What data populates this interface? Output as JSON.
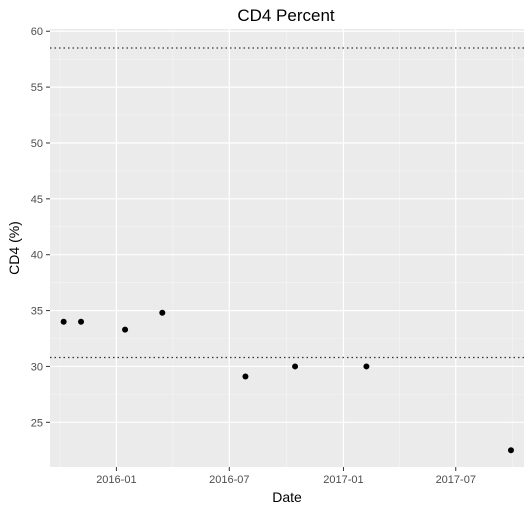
{
  "chart_data": {
    "type": "scatter",
    "title": "CD4 Percent",
    "xlabel": "Date",
    "ylabel": "CD4 (%)",
    "x_is_date": true,
    "xlim": [
      "2015-09-16",
      "2017-10-19"
    ],
    "ylim": [
      21,
      60.2
    ],
    "x_ticks": [
      {
        "value": "2016-01-01",
        "label": "2016-01"
      },
      {
        "value": "2016-07-01",
        "label": "2016-07"
      },
      {
        "value": "2017-01-01",
        "label": "2017-01"
      },
      {
        "value": "2017-07-01",
        "label": "2017-07"
      }
    ],
    "y_ticks": [
      25,
      30,
      35,
      40,
      45,
      50,
      55,
      60
    ],
    "reference_lines": [
      58.5,
      30.8
    ],
    "points": [
      {
        "x": "2015-10-08",
        "y": 34.0
      },
      {
        "x": "2015-11-05",
        "y": 34.0
      },
      {
        "x": "2016-01-15",
        "y": 33.3
      },
      {
        "x": "2016-03-15",
        "y": 34.8
      },
      {
        "x": "2016-07-27",
        "y": 29.1
      },
      {
        "x": "2016-10-15",
        "y": 30.0
      },
      {
        "x": "2017-02-07",
        "y": 30.0
      },
      {
        "x": "2017-09-28",
        "y": 22.5
      }
    ],
    "grid": true,
    "colors": {
      "panel_background": "#ebebeb",
      "grid_major": "#ffffff",
      "grid_minor": "#f5f5f5",
      "point": "#000000",
      "reference_line": "#333333"
    }
  }
}
